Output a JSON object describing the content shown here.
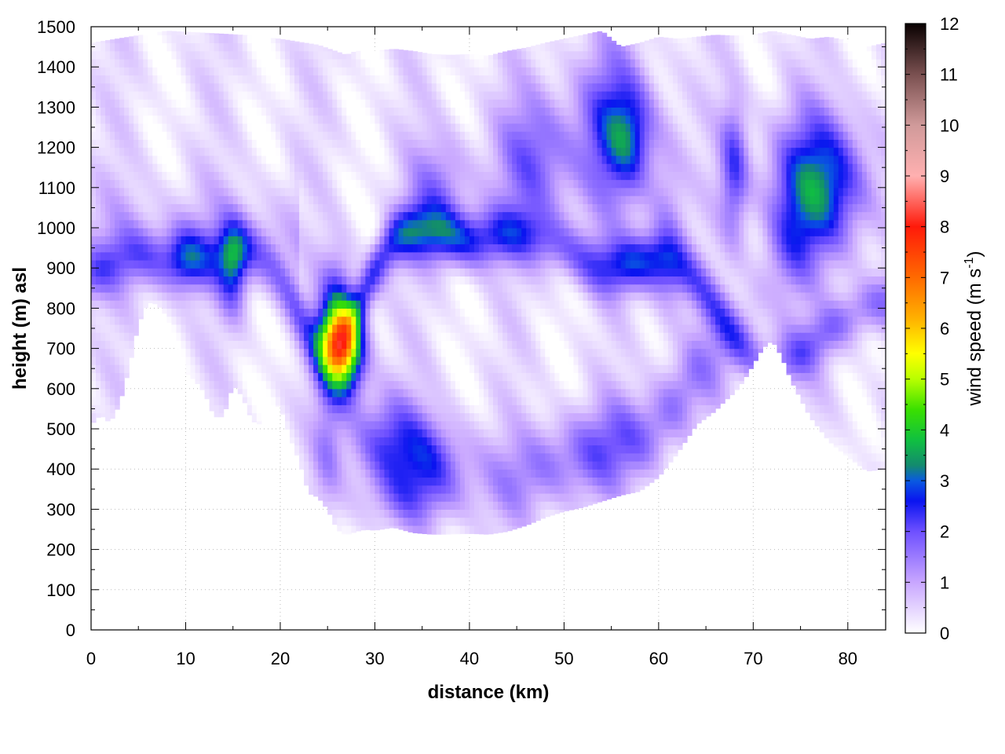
{
  "chart_data": {
    "type": "heatmap",
    "title": "",
    "xlabel": "distance (km)",
    "ylabel": "height (m) asl",
    "xlim": [
      0,
      84
    ],
    "ylim": [
      0,
      1500
    ],
    "x_ticks": [
      "0",
      "10",
      "20",
      "30",
      "40",
      "50",
      "60",
      "70",
      "80"
    ],
    "y_ticks": [
      "0",
      "100",
      "200",
      "300",
      "400",
      "500",
      "600",
      "700",
      "800",
      "900",
      "1000",
      "1100",
      "1200",
      "1300",
      "1400",
      "1500"
    ],
    "colorbar": {
      "title_main": "wind speed (m s",
      "title_sup": "-1",
      "title_close": ")",
      "range": [
        0,
        12
      ],
      "ticks": [
        "0",
        "1",
        "2",
        "3",
        "4",
        "5",
        "6",
        "7",
        "8",
        "9",
        "10",
        "11",
        "12"
      ],
      "palette": [
        {
          "v": 0,
          "color": "#ffffff"
        },
        {
          "v": 1,
          "color": "#c8a6ff"
        },
        {
          "v": 2,
          "color": "#6e50ff"
        },
        {
          "v": 2.6,
          "color": "#0a14f0"
        },
        {
          "v": 3,
          "color": "#0a5ae0"
        },
        {
          "v": 3.3,
          "color": "#138a6e"
        },
        {
          "v": 3.8,
          "color": "#10c040"
        },
        {
          "v": 4.4,
          "color": "#3ae000"
        },
        {
          "v": 5,
          "color": "#b8ff00"
        },
        {
          "v": 5.5,
          "color": "#ffff00"
        },
        {
          "v": 6.2,
          "color": "#ffb000"
        },
        {
          "v": 7,
          "color": "#ff6a00"
        },
        {
          "v": 8,
          "color": "#ff1a0a"
        },
        {
          "v": 9,
          "color": "#ffb0b0"
        },
        {
          "v": 10,
          "color": "#d09a9a"
        },
        {
          "v": 11,
          "color": "#7a5050"
        },
        {
          "v": 12,
          "color": "#080000"
        }
      ]
    },
    "terrain": {
      "x": [
        0,
        1,
        2,
        3,
        4,
        5,
        6,
        7,
        8,
        9,
        10,
        11,
        12,
        13,
        14,
        15,
        16,
        17,
        18,
        19,
        20,
        21,
        22,
        23,
        24,
        25,
        26,
        27,
        28,
        29,
        30,
        32,
        34,
        36,
        38,
        40,
        42,
        44,
        46,
        48,
        50,
        52,
        54,
        56,
        58,
        60,
        62,
        64,
        66,
        67,
        68,
        69,
        70,
        71,
        72,
        73,
        74,
        76,
        78,
        80,
        82,
        84
      ],
      "y": [
        510,
        535,
        515,
        560,
        650,
        760,
        815,
        810,
        780,
        720,
        640,
        620,
        590,
        530,
        530,
        610,
        580,
        520,
        510,
        560,
        555,
        480,
        420,
        340,
        330,
        300,
        250,
        235,
        245,
        250,
        248,
        255,
        242,
        238,
        238,
        240,
        238,
        245,
        260,
        280,
        295,
        305,
        320,
        335,
        345,
        380,
        440,
        510,
        545,
        570,
        590,
        620,
        660,
        700,
        720,
        680,
        620,
        530,
        470,
        430,
        395,
        400
      ]
    },
    "top_boundary": {
      "x": [
        0,
        4,
        8,
        12,
        16,
        20,
        24,
        27,
        28,
        30,
        32,
        34,
        36,
        38,
        40,
        42,
        44,
        46,
        48,
        50,
        52,
        54,
        56,
        58,
        60,
        62,
        64,
        66,
        68,
        70,
        72,
        74,
        76,
        78,
        80,
        82,
        84
      ],
      "y": [
        1460,
        1475,
        1490,
        1485,
        1480,
        1470,
        1455,
        1430,
        1440,
        1440,
        1445,
        1440,
        1432,
        1430,
        1432,
        1428,
        1440,
        1448,
        1460,
        1470,
        1480,
        1490,
        1450,
        1460,
        1475,
        1470,
        1475,
        1480,
        1478,
        1480,
        1490,
        1480,
        1470,
        1475,
        1465,
        1450,
        1460
      ]
    },
    "features": [
      {
        "x": 26.5,
        "z": 700,
        "sx": 2.2,
        "sz": 110,
        "speed": 6.2
      },
      {
        "x": 26,
        "z": 840,
        "sx": 1.8,
        "sz": 120,
        "speed": 1.3
      },
      {
        "x": 31,
        "z": 470,
        "sx": 4,
        "sz": 120,
        "speed": 1.7
      },
      {
        "x": 36,
        "z": 420,
        "sx": 4,
        "sz": 110,
        "speed": 1.5
      },
      {
        "x": 33,
        "z": 320,
        "sx": 4.5,
        "sz": 70,
        "speed": 0.7
      },
      {
        "x": 25,
        "z": 450,
        "sx": 1.5,
        "sz": 140,
        "speed": 0.8
      },
      {
        "x": 15,
        "z": 900,
        "sx": 1.5,
        "sz": 110,
        "speed": 2.0
      },
      {
        "x": 10,
        "z": 930,
        "sx": 2,
        "sz": 80,
        "speed": 1.2
      },
      {
        "x": 37,
        "z": 1100,
        "sx": 3.2,
        "sz": 130,
        "speed": 1.3
      },
      {
        "x": 47,
        "z": 1170,
        "sx": 4,
        "sz": 170,
        "speed": 1.6
      },
      {
        "x": 55,
        "z": 1250,
        "sx": 4,
        "sz": 200,
        "speed": 1.8
      },
      {
        "x": 57,
        "z": 1230,
        "sx": 2.5,
        "sz": 120,
        "speed": 1.5
      },
      {
        "x": 61,
        "z": 1000,
        "sx": 2,
        "sz": 240,
        "speed": 1.0
      },
      {
        "x": 68,
        "z": 1150,
        "sx": 1.5,
        "sz": 170,
        "speed": 1.8
      },
      {
        "x": 77,
        "z": 1110,
        "sx": 5,
        "sz": 170,
        "speed": 3.0
      },
      {
        "x": 74,
        "z": 950,
        "sx": 2.5,
        "sz": 120,
        "speed": 1.0
      }
    ]
  }
}
